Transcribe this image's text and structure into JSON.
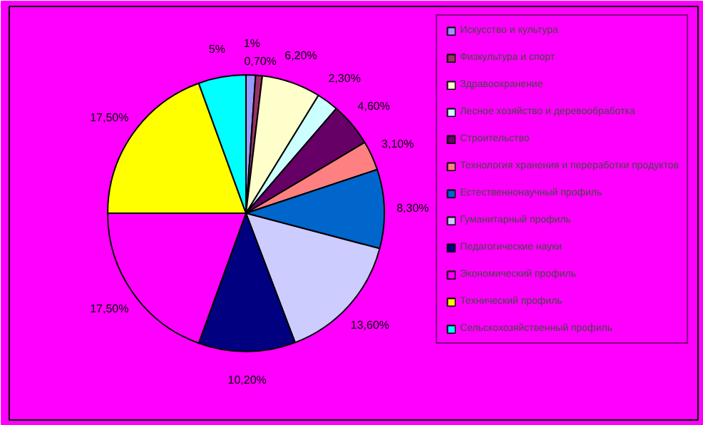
{
  "chart_data": {
    "type": "pie",
    "legend": "right",
    "categories": [
      "Искусство и культура",
      "Физкультура и спорт",
      "Здравоохранение",
      "Лесное хозяйство и деревообработка",
      "Строительство",
      "Технология хранения и переработки продуктов",
      "Естественнонаучный профиль",
      "Гуманитарный профиль",
      "Педагогические науки",
      "Экономический профиль",
      "Технический профиль",
      "Сельскохозяйственный профиль"
    ],
    "values": [
      1,
      0.7,
      6.2,
      2.3,
      4.6,
      3.1,
      8.3,
      13.6,
      10.2,
      17.5,
      17.5,
      5
    ],
    "value_labels": [
      "1%",
      "0,70%",
      "6,20%",
      "2,30%",
      "4,60%",
      "3,10%",
      "8,30%",
      "13,60%",
      "10,20%",
      "17,50%",
      "17,50%",
      "5%"
    ],
    "colors": [
      "#9999ff",
      "#993366",
      "#ffffcc",
      "#ccffff",
      "#660066",
      "#ff8080",
      "#0066cc",
      "#ccccff",
      "#000080",
      "#ff00ff",
      "#ffff00",
      "#00ffff"
    ]
  }
}
